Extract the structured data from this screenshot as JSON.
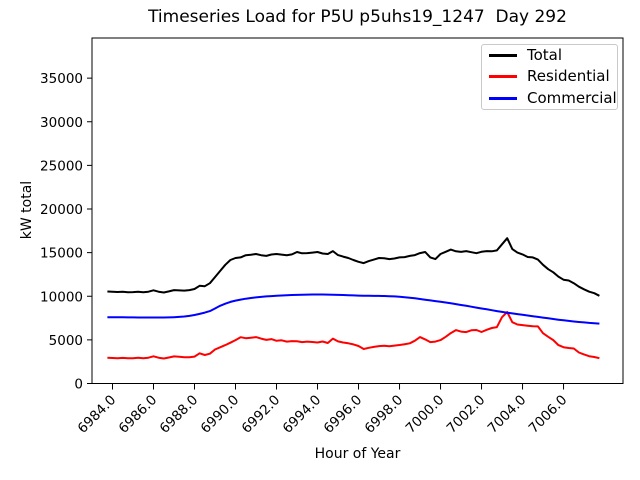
{
  "chart_data": {
    "type": "line",
    "title": "Timeseries Load for P5U p5uhs19_1247  Day 292",
    "xlabel": "Hour of Year",
    "ylabel": "kW total",
    "xlim": [
      6983.0,
      7008.9
    ],
    "ylim": [
      0,
      39600
    ],
    "grid": false,
    "legend_position": "upper right",
    "xtick_rotation_deg": 45,
    "xticks": {
      "values": [
        6984,
        6986,
        6988,
        6990,
        6992,
        6994,
        6996,
        6998,
        7000,
        7002,
        7004,
        7006
      ],
      "labels": [
        "6984.0",
        "6986.0",
        "6988.0",
        "6990.0",
        "6992.0",
        "6994.0",
        "6996.0",
        "6998.0",
        "7000.0",
        "7002.0",
        "7004.0",
        "7006.0"
      ]
    },
    "yticks": {
      "values": [
        0,
        5000,
        10000,
        15000,
        20000,
        25000,
        30000,
        35000
      ],
      "labels": [
        "0",
        "5000",
        "10000",
        "15000",
        "20000",
        "25000",
        "30000",
        "35000"
      ]
    },
    "x": [
      6983.75,
      6984.0,
      6984.25,
      6984.5,
      6984.75,
      6985.0,
      6985.25,
      6985.5,
      6985.75,
      6986.0,
      6986.25,
      6986.5,
      6986.75,
      6987.0,
      6987.25,
      6987.5,
      6987.75,
      6988.0,
      6988.25,
      6988.5,
      6988.75,
      6989.0,
      6989.25,
      6989.5,
      6989.75,
      6990.0,
      6990.25,
      6990.5,
      6990.75,
      6991.0,
      6991.25,
      6991.5,
      6991.75,
      6992.0,
      6992.25,
      6992.5,
      6992.75,
      6993.0,
      6993.25,
      6993.5,
      6993.75,
      6994.0,
      6994.25,
      6994.5,
      6994.75,
      6995.0,
      6995.25,
      6995.5,
      6995.75,
      6996.0,
      6996.25,
      6996.5,
      6996.75,
      6997.0,
      6997.25,
      6997.5,
      6997.75,
      6998.0,
      6998.25,
      6998.5,
      6998.75,
      6999.0,
      6999.25,
      6999.5,
      6999.75,
      7000.0,
      7000.25,
      7000.5,
      7000.75,
      7001.0,
      7001.25,
      7001.5,
      7001.75,
      7002.0,
      7002.25,
      7002.5,
      7002.75,
      7003.0,
      7003.25,
      7003.5,
      7003.75,
      7004.0,
      7004.25,
      7004.5,
      7004.75,
      7005.0,
      7005.25,
      7005.5,
      7005.75,
      7006.0,
      7006.25,
      7006.5,
      7006.75,
      7007.0,
      7007.25,
      7007.5,
      7007.75
    ],
    "series": [
      {
        "name": "Total",
        "color": "#000000",
        "values": [
          10550,
          10515,
          10490,
          10515,
          10470,
          10475,
          10510,
          10465,
          10525,
          10685,
          10525,
          10430,
          10560,
          10705,
          10675,
          10645,
          10710,
          10830,
          11200,
          11150,
          11500,
          12200,
          12900,
          13600,
          14150,
          14380,
          14450,
          14700,
          14750,
          14840,
          14700,
          14630,
          14790,
          14840,
          14770,
          14700,
          14800,
          15070,
          14920,
          14950,
          15000,
          15070,
          14900,
          14840,
          15180,
          14720,
          14550,
          14380,
          14150,
          13950,
          13800,
          14030,
          14200,
          14380,
          14350,
          14260,
          14330,
          14450,
          14490,
          14620,
          14720,
          14950,
          15070,
          14450,
          14260,
          14840,
          15100,
          15350,
          15150,
          15080,
          15170,
          15050,
          14930,
          15100,
          15170,
          15150,
          15250,
          15950,
          16650,
          15400,
          15000,
          14800,
          14500,
          14450,
          14200,
          13600,
          13100,
          12750,
          12250,
          11900,
          11800,
          11500,
          11100,
          10800,
          10520,
          10350,
          10050
        ]
      },
      {
        "name": "Residential",
        "color": "#ff0000",
        "values": [
          2950,
          2920,
          2900,
          2930,
          2890,
          2900,
          2940,
          2900,
          2960,
          3120,
          2960,
          2860,
          2980,
          3110,
          3060,
          3000,
          3020,
          3080,
          3460,
          3270,
          3420,
          3900,
          4150,
          4400,
          4680,
          4970,
          5310,
          5190,
          5250,
          5320,
          5150,
          5000,
          5090,
          4890,
          4950,
          4800,
          4860,
          4840,
          4740,
          4800,
          4760,
          4700,
          4810,
          4640,
          5150,
          4820,
          4700,
          4610,
          4480,
          4300,
          3950,
          4090,
          4200,
          4290,
          4330,
          4260,
          4340,
          4410,
          4500,
          4610,
          4900,
          5320,
          5060,
          4740,
          4800,
          4970,
          5350,
          5780,
          6120,
          5950,
          5890,
          6100,
          6130,
          5900,
          6150,
          6360,
          6470,
          7600,
          8200,
          7030,
          6760,
          6690,
          6620,
          6570,
          6550,
          5770,
          5350,
          4970,
          4400,
          4165,
          4070,
          4010,
          3550,
          3340,
          3130,
          3040,
          2900
        ]
      },
      {
        "name": "Commercial",
        "color": "#0000ff",
        "values": [
          7600,
          7595,
          7590,
          7585,
          7580,
          7575,
          7570,
          7565,
          7565,
          7565,
          7565,
          7570,
          7580,
          7600,
          7630,
          7680,
          7750,
          7850,
          7980,
          8130,
          8300,
          8600,
          8900,
          9150,
          9350,
          9500,
          9620,
          9720,
          9800,
          9870,
          9930,
          9980,
          10020,
          10060,
          10090,
          10120,
          10140,
          10160,
          10180,
          10190,
          10200,
          10200,
          10200,
          10190,
          10180,
          10160,
          10140,
          10120,
          10100,
          10080,
          10060,
          10050,
          10040,
          10040,
          10030,
          10010,
          9980,
          9940,
          9890,
          9830,
          9760,
          9690,
          9610,
          9530,
          9450,
          9370,
          9280,
          9190,
          9100,
          9000,
          8900,
          8800,
          8700,
          8600,
          8500,
          8400,
          8300,
          8210,
          8120,
          8030,
          7950,
          7870,
          7790,
          7710,
          7630,
          7550,
          7470,
          7390,
          7310,
          7240,
          7170,
          7110,
          7050,
          7000,
          6950,
          6910,
          6870
        ]
      }
    ]
  }
}
